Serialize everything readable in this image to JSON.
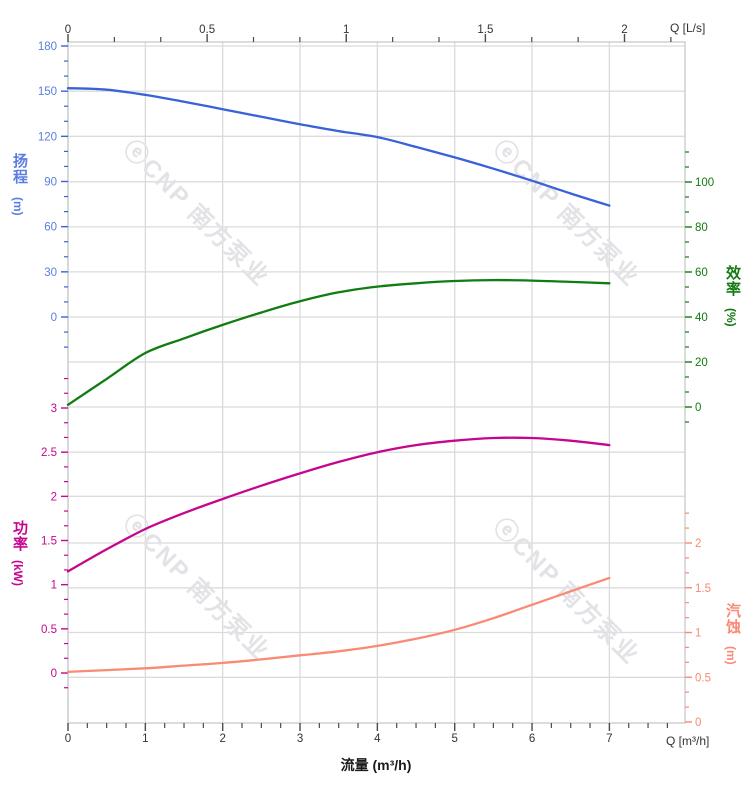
{
  "watermark": {
    "text": "ⓔCNP 南方泵业",
    "color": "#E3E3E7"
  },
  "chart_data": {
    "type": "line",
    "title": "",
    "x": [
      0,
      0.5,
      1,
      1.5,
      2,
      2.5,
      3,
      3.5,
      4,
      4.5,
      5,
      5.5,
      6,
      6.5,
      7
    ],
    "x_bottom_axis": {
      "title": "流量 (m³/h)",
      "corner_label": "Q [m³/h]",
      "unit": "m³/h",
      "majors": [
        0,
        1,
        2,
        3,
        4,
        5,
        6,
        7
      ],
      "minor_step": 0.25,
      "range": [
        0,
        7.98
      ]
    },
    "x_top_axis": {
      "corner_label": "Q [L/s]",
      "unit": "L/s",
      "majors": [
        0,
        0.5,
        1,
        1.5,
        2
      ],
      "minor_step": 0.16667,
      "range": [
        0,
        2.218
      ]
    },
    "y_axes": [
      {
        "id": "head",
        "title": "扬程",
        "unit": "(m)",
        "side": "left",
        "color": "#3A62D8",
        "label_color": "#5B7EE0",
        "majors": [
          180,
          150,
          120,
          90,
          60,
          30,
          0
        ],
        "minor_step": 10,
        "range": [
          180,
          0
        ]
      },
      {
        "id": "efficiency",
        "title": "效率",
        "unit": "(%)",
        "side": "right",
        "color": "#0F7D12",
        "label_color": "#127A12",
        "majors": [
          100,
          80,
          60,
          40,
          20,
          0
        ],
        "minor_step": 6.6667,
        "range": [
          100,
          0
        ]
      },
      {
        "id": "power",
        "title": "功率",
        "unit": "(kW)",
        "side": "left",
        "color": "#C50790",
        "label_color": "#C50790",
        "majors": [
          3,
          2.5,
          2,
          1.5,
          1,
          0.5,
          0
        ],
        "minor_step": 0.16667,
        "range": [
          3,
          0
        ]
      },
      {
        "id": "npsh",
        "title": "汽蚀",
        "unit": "(m)",
        "side": "right",
        "color": "#FA8A75",
        "label_color": "#FA8A75",
        "majors": [
          2,
          1.5,
          1,
          0.5,
          0
        ],
        "minor_step": 0.16667,
        "range": [
          2,
          0
        ]
      }
    ],
    "series": [
      {
        "name": "head-curve",
        "axis": "head",
        "values": [
          152,
          151,
          147.5,
          143,
          138,
          133,
          128,
          123.5,
          119.5,
          113,
          106,
          98.5,
          90.5,
          82,
          74
        ]
      },
      {
        "name": "efficiency-curve",
        "axis": "efficiency",
        "values": [
          1,
          12.5,
          24,
          30.5,
          36.5,
          42,
          47,
          51,
          53.5,
          55,
          56,
          56.4,
          56.2,
          55.6,
          55
        ]
      },
      {
        "name": "power-curve",
        "axis": "power",
        "values": [
          1.15,
          1.4,
          1.63,
          1.81,
          1.97,
          2.12,
          2.26,
          2.39,
          2.5,
          2.58,
          2.63,
          2.66,
          2.66,
          2.63,
          2.58
        ]
      },
      {
        "name": "npsh-curve",
        "axis": "npsh",
        "values": [
          0.56,
          0.58,
          0.6,
          0.63,
          0.66,
          0.7,
          0.745,
          0.79,
          0.85,
          0.93,
          1.03,
          1.16,
          1.31,
          1.46,
          1.61
        ]
      }
    ]
  }
}
